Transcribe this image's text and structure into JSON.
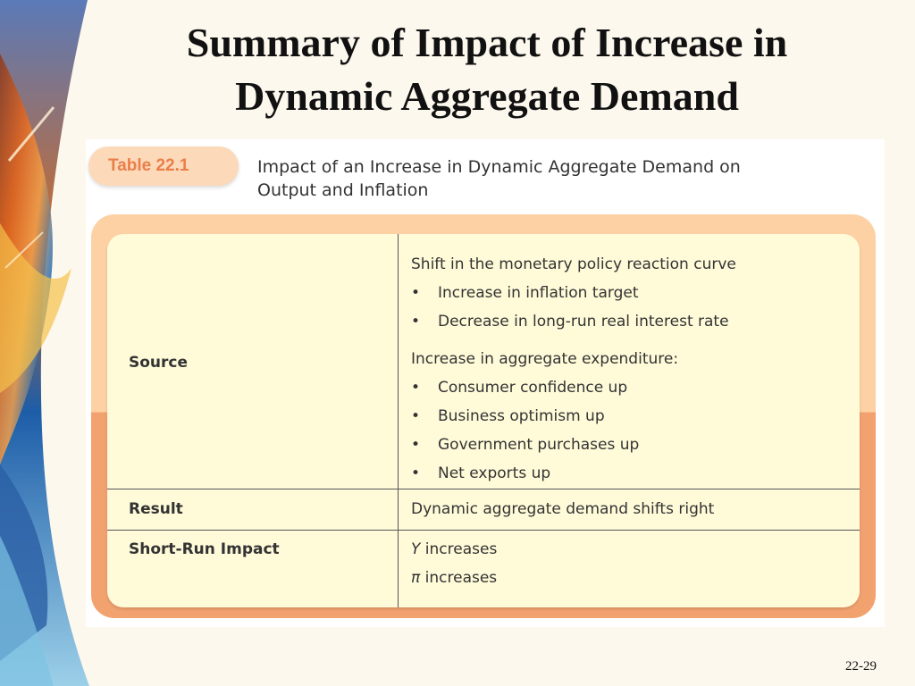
{
  "slide": {
    "title_line1": "Summary of Impact of Increase in",
    "title_line2": "Dynamic Aggregate Demand",
    "page_number": "22-29"
  },
  "table": {
    "tab_label": "Table 22.1",
    "caption_line1": "Impact of an Increase in Dynamic Aggregate Demand on",
    "caption_line2": "Output and Inflation",
    "rows": [
      {
        "label": "Source",
        "groups": [
          {
            "heading": "Shift in the monetary policy reaction curve",
            "bullets": [
              "Increase in inflation target",
              "Decrease in long-run real interest rate"
            ]
          },
          {
            "heading": "Increase in aggregate expenditure:",
            "bullets": [
              "Consumer confidence up",
              "Business optimism up",
              "Government purchases up",
              "Net exports up"
            ]
          }
        ]
      },
      {
        "label": "Result",
        "value": "Dynamic aggregate demand shifts right"
      },
      {
        "label": "Short-Run Impact",
        "symbol_y": "Y",
        "text_y": " increases",
        "symbol_pi": "π",
        "text_pi": " increases"
      }
    ]
  },
  "colors": {
    "tab_background": "#fcd9b9",
    "tab_text": "#ea7f4a",
    "frame_top": "#fdd1a3",
    "frame_bottom": "#f2a26f",
    "table_body": "#fffbd9"
  }
}
